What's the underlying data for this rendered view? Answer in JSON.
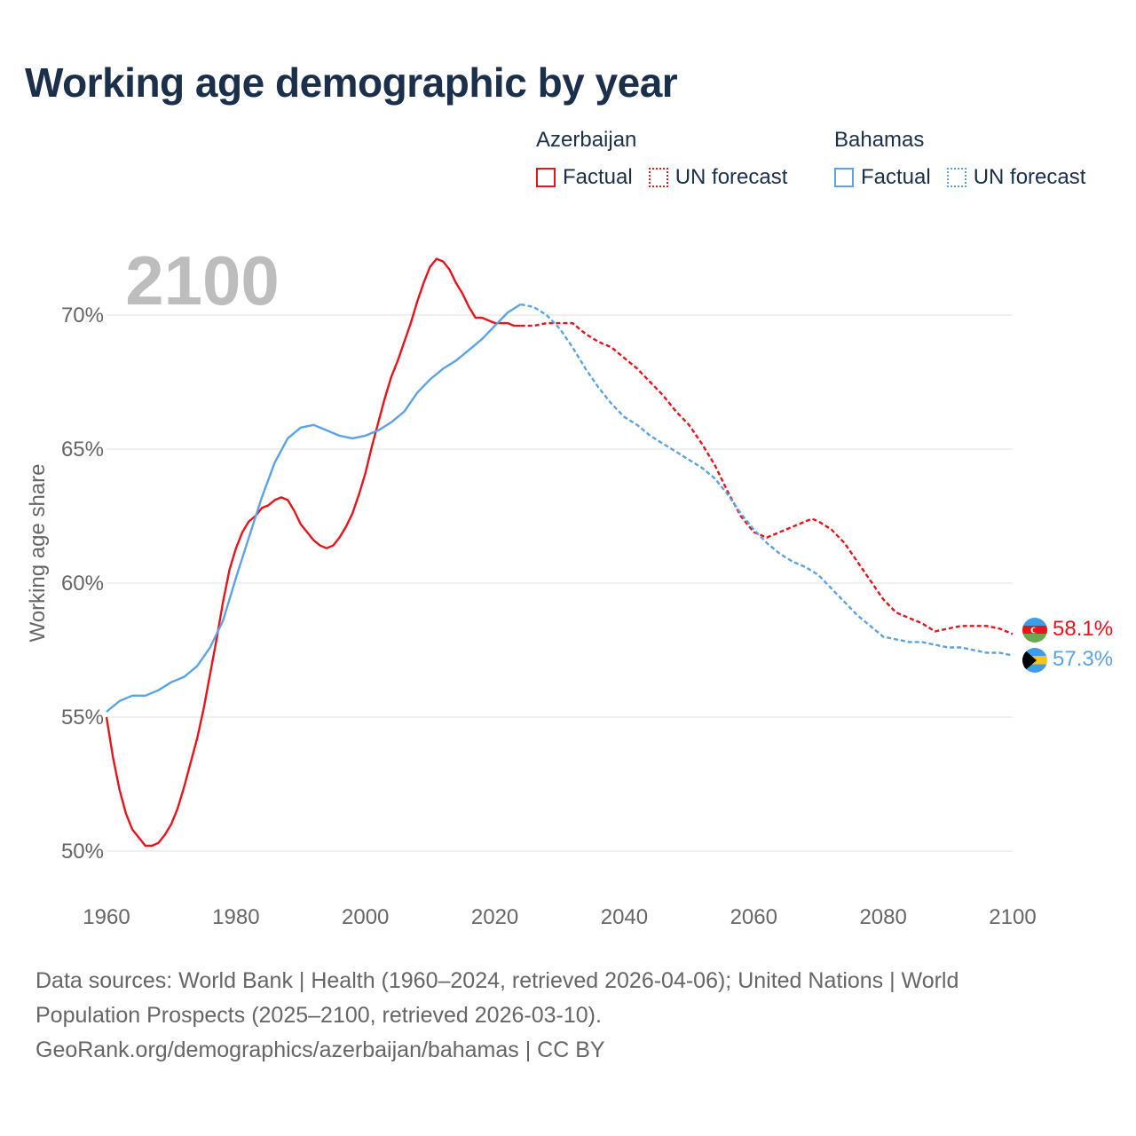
{
  "title": "Working age demographic by year",
  "legend": {
    "groups": [
      {
        "country": "Azerbaijan",
        "factual_label": "Factual",
        "forecast_label": "UN forecast",
        "color": "#e8131b"
      },
      {
        "country": "Bahamas",
        "factual_label": "Factual",
        "forecast_label": "UN forecast",
        "color": "#5ba3e3"
      }
    ]
  },
  "footer": {
    "line1": "Data sources: World Bank | Health (1960–2024, retrieved 2026-04-06); United Nations | World",
    "line2": "Population Prospects (2025–2100, retrieved 2026-03-10).",
    "line3": "GeoRank.org/demographics/azerbaijan/bahamas | CC BY"
  },
  "chart_data": {
    "type": "line",
    "year_watermark": "2100",
    "ylabel": "Working age share",
    "xlim": [
      1960,
      2100
    ],
    "ylim": [
      50,
      72
    ],
    "x_ticks": [
      "1960",
      "1980",
      "2000",
      "2020",
      "2040",
      "2060",
      "2080",
      "2100"
    ],
    "y_ticks": [
      "50%",
      "55%",
      "60%",
      "65%",
      "70%"
    ],
    "y_tick_values": [
      50,
      55,
      60,
      65,
      70
    ],
    "grid": true,
    "forecast_start_year": 2024,
    "series": [
      {
        "name": "Azerbaijan",
        "color": "#e8131b",
        "end_label": "58.1%",
        "points": [
          [
            1960,
            55.0
          ],
          [
            1961,
            53.5
          ],
          [
            1962,
            52.3
          ],
          [
            1963,
            51.4
          ],
          [
            1964,
            50.8
          ],
          [
            1965,
            50.5
          ],
          [
            1966,
            50.2
          ],
          [
            1967,
            50.2
          ],
          [
            1968,
            50.3
          ],
          [
            1969,
            50.6
          ],
          [
            1970,
            51.0
          ],
          [
            1971,
            51.6
          ],
          [
            1972,
            52.4
          ],
          [
            1973,
            53.3
          ],
          [
            1974,
            54.2
          ],
          [
            1975,
            55.3
          ],
          [
            1976,
            56.6
          ],
          [
            1977,
            57.9
          ],
          [
            1978,
            59.3
          ],
          [
            1979,
            60.5
          ],
          [
            1980,
            61.3
          ],
          [
            1981,
            61.9
          ],
          [
            1982,
            62.3
          ],
          [
            1983,
            62.5
          ],
          [
            1984,
            62.8
          ],
          [
            1985,
            62.9
          ],
          [
            1986,
            63.1
          ],
          [
            1987,
            63.2
          ],
          [
            1988,
            63.1
          ],
          [
            1989,
            62.7
          ],
          [
            1990,
            62.2
          ],
          [
            1991,
            61.9
          ],
          [
            1992,
            61.6
          ],
          [
            1993,
            61.4
          ],
          [
            1994,
            61.3
          ],
          [
            1995,
            61.4
          ],
          [
            1996,
            61.7
          ],
          [
            1997,
            62.1
          ],
          [
            1998,
            62.6
          ],
          [
            1999,
            63.3
          ],
          [
            2000,
            64.1
          ],
          [
            2001,
            65.1
          ],
          [
            2002,
            66.0
          ],
          [
            2003,
            66.9
          ],
          [
            2004,
            67.7
          ],
          [
            2005,
            68.3
          ],
          [
            2006,
            69.0
          ],
          [
            2007,
            69.7
          ],
          [
            2008,
            70.5
          ],
          [
            2009,
            71.2
          ],
          [
            2010,
            71.8
          ],
          [
            2011,
            72.1
          ],
          [
            2012,
            72.0
          ],
          [
            2013,
            71.7
          ],
          [
            2014,
            71.2
          ],
          [
            2015,
            70.8
          ],
          [
            2016,
            70.3
          ],
          [
            2017,
            69.9
          ],
          [
            2018,
            69.9
          ],
          [
            2019,
            69.8
          ],
          [
            2020,
            69.7
          ],
          [
            2021,
            69.7
          ],
          [
            2022,
            69.7
          ],
          [
            2023,
            69.6
          ],
          [
            2024,
            69.6
          ],
          [
            2026,
            69.6
          ],
          [
            2028,
            69.7
          ],
          [
            2030,
            69.7
          ],
          [
            2032,
            69.7
          ],
          [
            2034,
            69.3
          ],
          [
            2036,
            69.0
          ],
          [
            2038,
            68.8
          ],
          [
            2040,
            68.4
          ],
          [
            2042,
            68.0
          ],
          [
            2044,
            67.5
          ],
          [
            2046,
            67.0
          ],
          [
            2048,
            66.4
          ],
          [
            2050,
            65.9
          ],
          [
            2052,
            65.2
          ],
          [
            2054,
            64.4
          ],
          [
            2056,
            63.4
          ],
          [
            2058,
            62.5
          ],
          [
            2060,
            61.9
          ],
          [
            2062,
            61.7
          ],
          [
            2064,
            61.9
          ],
          [
            2066,
            62.1
          ],
          [
            2068,
            62.3
          ],
          [
            2069,
            62.4
          ],
          [
            2070,
            62.3
          ],
          [
            2072,
            62.0
          ],
          [
            2074,
            61.5
          ],
          [
            2076,
            60.8
          ],
          [
            2078,
            60.1
          ],
          [
            2080,
            59.4
          ],
          [
            2082,
            58.9
          ],
          [
            2084,
            58.7
          ],
          [
            2086,
            58.5
          ],
          [
            2088,
            58.2
          ],
          [
            2090,
            58.3
          ],
          [
            2092,
            58.4
          ],
          [
            2094,
            58.4
          ],
          [
            2096,
            58.4
          ],
          [
            2098,
            58.3
          ],
          [
            2100,
            58.1
          ]
        ]
      },
      {
        "name": "Bahamas",
        "color": "#5ba3e3",
        "end_label": "57.3%",
        "points": [
          [
            1960,
            55.2
          ],
          [
            1962,
            55.6
          ],
          [
            1964,
            55.8
          ],
          [
            1966,
            55.8
          ],
          [
            1968,
            56.0
          ],
          [
            1970,
            56.3
          ],
          [
            1972,
            56.5
          ],
          [
            1974,
            56.9
          ],
          [
            1976,
            57.6
          ],
          [
            1978,
            58.6
          ],
          [
            1980,
            60.2
          ],
          [
            1982,
            61.7
          ],
          [
            1984,
            63.2
          ],
          [
            1986,
            64.5
          ],
          [
            1988,
            65.4
          ],
          [
            1990,
            65.8
          ],
          [
            1992,
            65.9
          ],
          [
            1994,
            65.7
          ],
          [
            1996,
            65.5
          ],
          [
            1998,
            65.4
          ],
          [
            2000,
            65.5
          ],
          [
            2002,
            65.7
          ],
          [
            2004,
            66.0
          ],
          [
            2006,
            66.4
          ],
          [
            2008,
            67.1
          ],
          [
            2010,
            67.6
          ],
          [
            2012,
            68.0
          ],
          [
            2014,
            68.3
          ],
          [
            2016,
            68.7
          ],
          [
            2018,
            69.1
          ],
          [
            2020,
            69.6
          ],
          [
            2022,
            70.1
          ],
          [
            2024,
            70.4
          ],
          [
            2026,
            70.3
          ],
          [
            2028,
            70.0
          ],
          [
            2030,
            69.5
          ],
          [
            2032,
            68.8
          ],
          [
            2034,
            68.0
          ],
          [
            2036,
            67.3
          ],
          [
            2038,
            66.7
          ],
          [
            2040,
            66.2
          ],
          [
            2042,
            65.9
          ],
          [
            2044,
            65.5
          ],
          [
            2046,
            65.2
          ],
          [
            2048,
            64.9
          ],
          [
            2050,
            64.6
          ],
          [
            2052,
            64.3
          ],
          [
            2054,
            63.9
          ],
          [
            2056,
            63.3
          ],
          [
            2058,
            62.6
          ],
          [
            2060,
            62.0
          ],
          [
            2062,
            61.5
          ],
          [
            2064,
            61.1
          ],
          [
            2066,
            60.8
          ],
          [
            2068,
            60.6
          ],
          [
            2070,
            60.3
          ],
          [
            2072,
            59.8
          ],
          [
            2074,
            59.3
          ],
          [
            2076,
            58.8
          ],
          [
            2078,
            58.4
          ],
          [
            2080,
            58.0
          ],
          [
            2082,
            57.9
          ],
          [
            2084,
            57.8
          ],
          [
            2086,
            57.8
          ],
          [
            2088,
            57.7
          ],
          [
            2090,
            57.6
          ],
          [
            2092,
            57.6
          ],
          [
            2094,
            57.5
          ],
          [
            2096,
            57.4
          ],
          [
            2098,
            57.4
          ],
          [
            2100,
            57.3
          ]
        ]
      }
    ]
  }
}
